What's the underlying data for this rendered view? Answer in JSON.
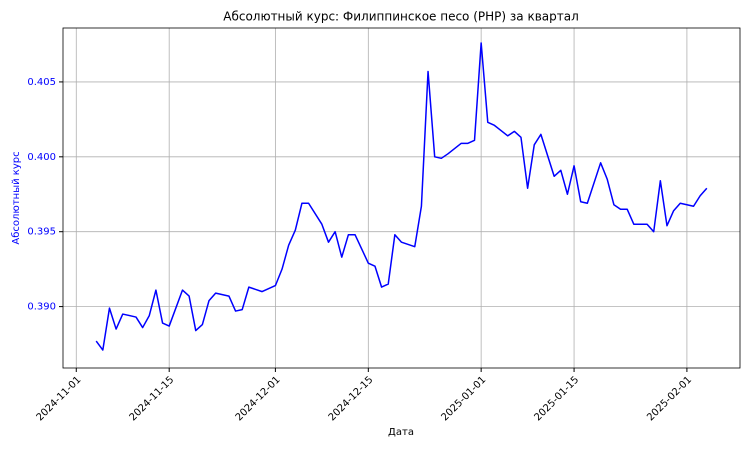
{
  "chart_data": {
    "type": "line",
    "title": "Абсолютный курс: Филиппинское песо (PHP) за квартал",
    "xlabel": "Дата",
    "ylabel": "Абсолютный курс",
    "color": "#0000ff",
    "label_color": "#0000ff",
    "grid": true,
    "x": [
      "2024-11-04",
      "2024-11-05",
      "2024-11-06",
      "2024-11-07",
      "2024-11-08",
      "2024-11-10",
      "2024-11-11",
      "2024-11-12",
      "2024-11-13",
      "2024-11-14",
      "2024-11-15",
      "2024-11-17",
      "2024-11-18",
      "2024-11-19",
      "2024-11-20",
      "2024-11-21",
      "2024-11-22",
      "2024-11-24",
      "2024-11-25",
      "2024-11-26",
      "2024-11-27",
      "2024-11-29",
      "2024-12-01",
      "2024-12-02",
      "2024-12-03",
      "2024-12-04",
      "2024-12-05",
      "2024-12-06",
      "2024-12-08",
      "2024-12-09",
      "2024-12-10",
      "2024-12-11",
      "2024-12-12",
      "2024-12-13",
      "2024-12-15",
      "2024-12-16",
      "2024-12-17",
      "2024-12-18",
      "2024-12-19",
      "2024-12-20",
      "2024-12-22",
      "2024-12-23",
      "2024-12-24",
      "2024-12-25",
      "2024-12-26",
      "2024-12-27",
      "2024-12-29",
      "2024-12-30",
      "2024-12-31",
      "2025-01-01",
      "2025-01-02",
      "2025-01-03",
      "2025-01-05",
      "2025-01-06",
      "2025-01-07",
      "2025-01-08",
      "2025-01-09",
      "2025-01-10",
      "2025-01-12",
      "2025-01-13",
      "2025-01-14",
      "2025-01-15",
      "2025-01-16",
      "2025-01-17",
      "2025-01-19",
      "2025-01-20",
      "2025-01-21",
      "2025-01-22",
      "2025-01-23",
      "2025-01-24",
      "2025-01-26",
      "2025-01-27",
      "2025-01-28",
      "2025-01-29",
      "2025-01-30",
      "2025-01-31",
      "2025-02-02",
      "2025-02-03",
      "2025-02-04"
    ],
    "values": [
      0.3877,
      0.3871,
      0.3899,
      0.3885,
      0.3895,
      0.3893,
      0.3886,
      0.3894,
      0.3911,
      0.3889,
      0.3887,
      0.3911,
      0.3907,
      0.3884,
      0.3888,
      0.3904,
      0.3909,
      0.3907,
      0.3897,
      0.3898,
      0.3913,
      0.391,
      0.3914,
      0.3925,
      0.3941,
      0.3951,
      0.3969,
      0.3969,
      0.3955,
      0.3943,
      0.395,
      0.3933,
      0.3948,
      0.3948,
      0.3929,
      0.3927,
      0.3913,
      0.3915,
      0.3948,
      0.3943,
      0.394,
      0.3967,
      0.4057,
      0.4,
      0.3999,
      0.4002,
      0.4009,
      0.4009,
      0.4011,
      0.4076,
      0.4023,
      0.4021,
      0.4014,
      0.4017,
      0.4013,
      0.3979,
      0.4008,
      0.4015,
      0.3987,
      0.3991,
      0.3975,
      0.3994,
      0.397,
      0.3969,
      0.3996,
      0.3985,
      0.3968,
      0.3965,
      0.3965,
      0.3955,
      0.3955,
      0.395,
      0.3984,
      0.3954,
      0.3964,
      0.3969,
      0.3967,
      0.3974,
      0.3979
    ],
    "xlim": [
      "2024-10-30",
      "2025-02-09"
    ],
    "xticks": [
      "2024-11-01",
      "2024-11-15",
      "2024-12-01",
      "2024-12-15",
      "2025-01-01",
      "2025-01-15",
      "2025-02-01"
    ],
    "ylim": [
      0.3859,
      0.4086
    ],
    "yticks": [
      {
        "value": 0.39,
        "label": "0.390"
      },
      0.395,
      {
        "value": 0.4,
        "label": "0.400"
      },
      0.405
    ]
  }
}
